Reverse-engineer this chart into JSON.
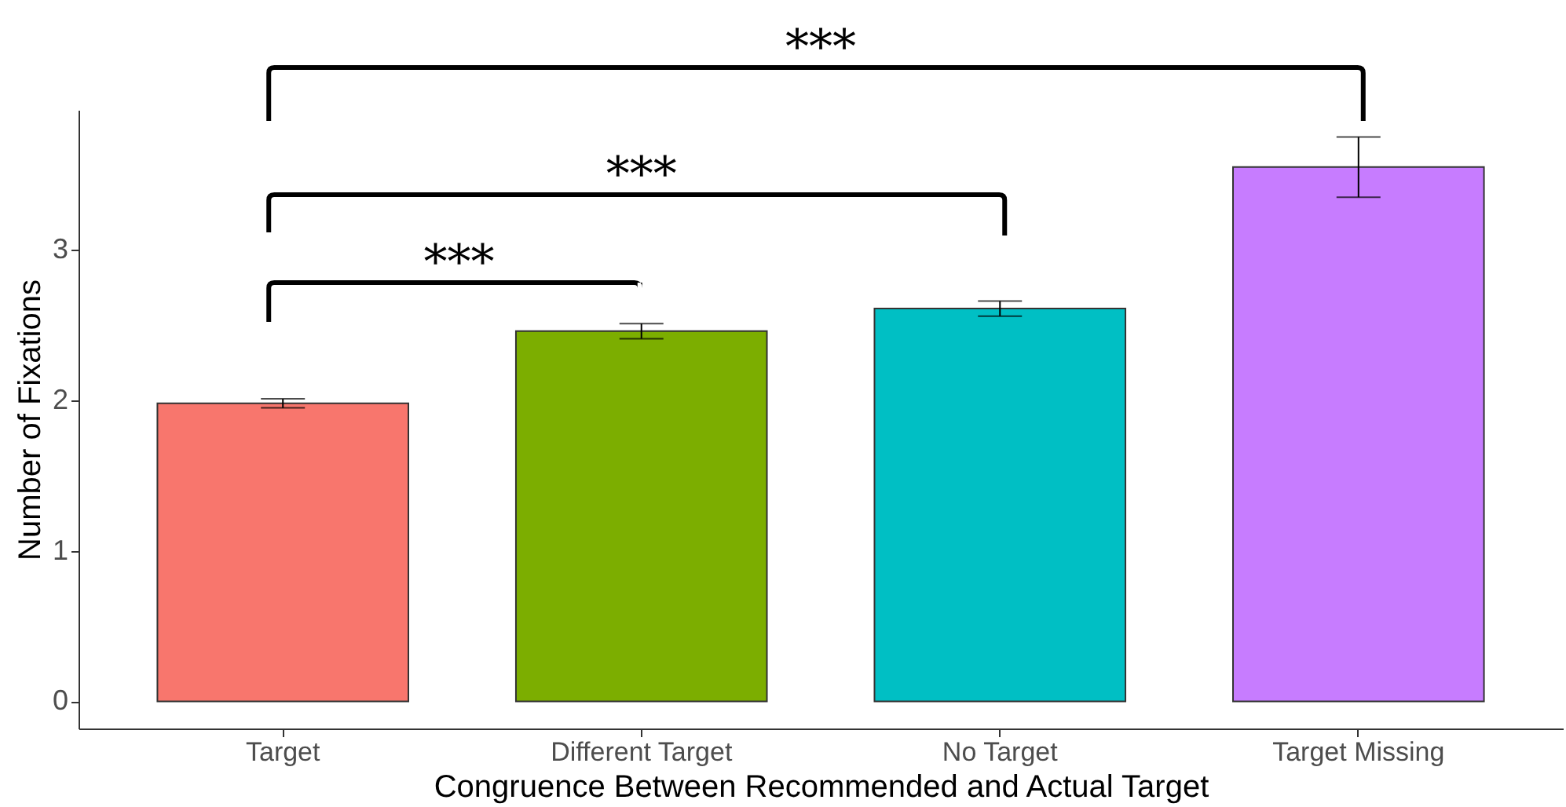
{
  "chart_data": {
    "type": "bar",
    "xlabel": "Congruence Between Recommended and Actual Target",
    "ylabel": "Number of Fixations",
    "categories": [
      "Target",
      "Different Target",
      "No Target",
      "Target Missing"
    ],
    "values": [
      1.98,
      2.46,
      2.61,
      3.55
    ],
    "colors": [
      "#f8766d",
      "#7cae00",
      "#00bfc4",
      "#c77cff"
    ],
    "errors": [
      0.03,
      0.05,
      0.05,
      0.2
    ],
    "ylim": [
      -0.18,
      3.93
    ],
    "yticks": [
      0,
      1,
      2,
      3
    ],
    "grid": false,
    "annotations": [
      "***",
      "***",
      "***"
    ]
  }
}
